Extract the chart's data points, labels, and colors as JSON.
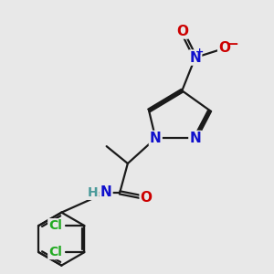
{
  "background_color": "#e8e8e8",
  "bond_color": "#1a1a1a",
  "bond_width": 1.6,
  "atom_colors": {
    "N": "#1010cc",
    "O": "#cc0000",
    "Cl": "#22aa22",
    "H": "#4a9a9a",
    "C": "#1a1a1a"
  },
  "font_size_atom": 11,
  "font_size_small": 9
}
